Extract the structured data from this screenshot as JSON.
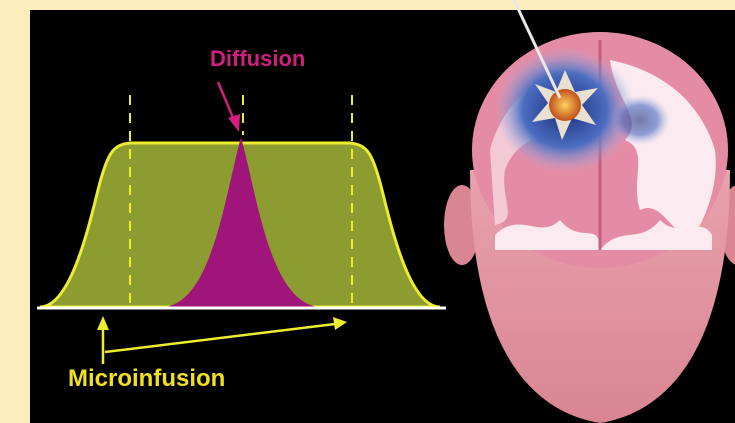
{
  "labels": {
    "diffusion": "Diffusion",
    "microinfusion": "Microinfusion"
  }
}
